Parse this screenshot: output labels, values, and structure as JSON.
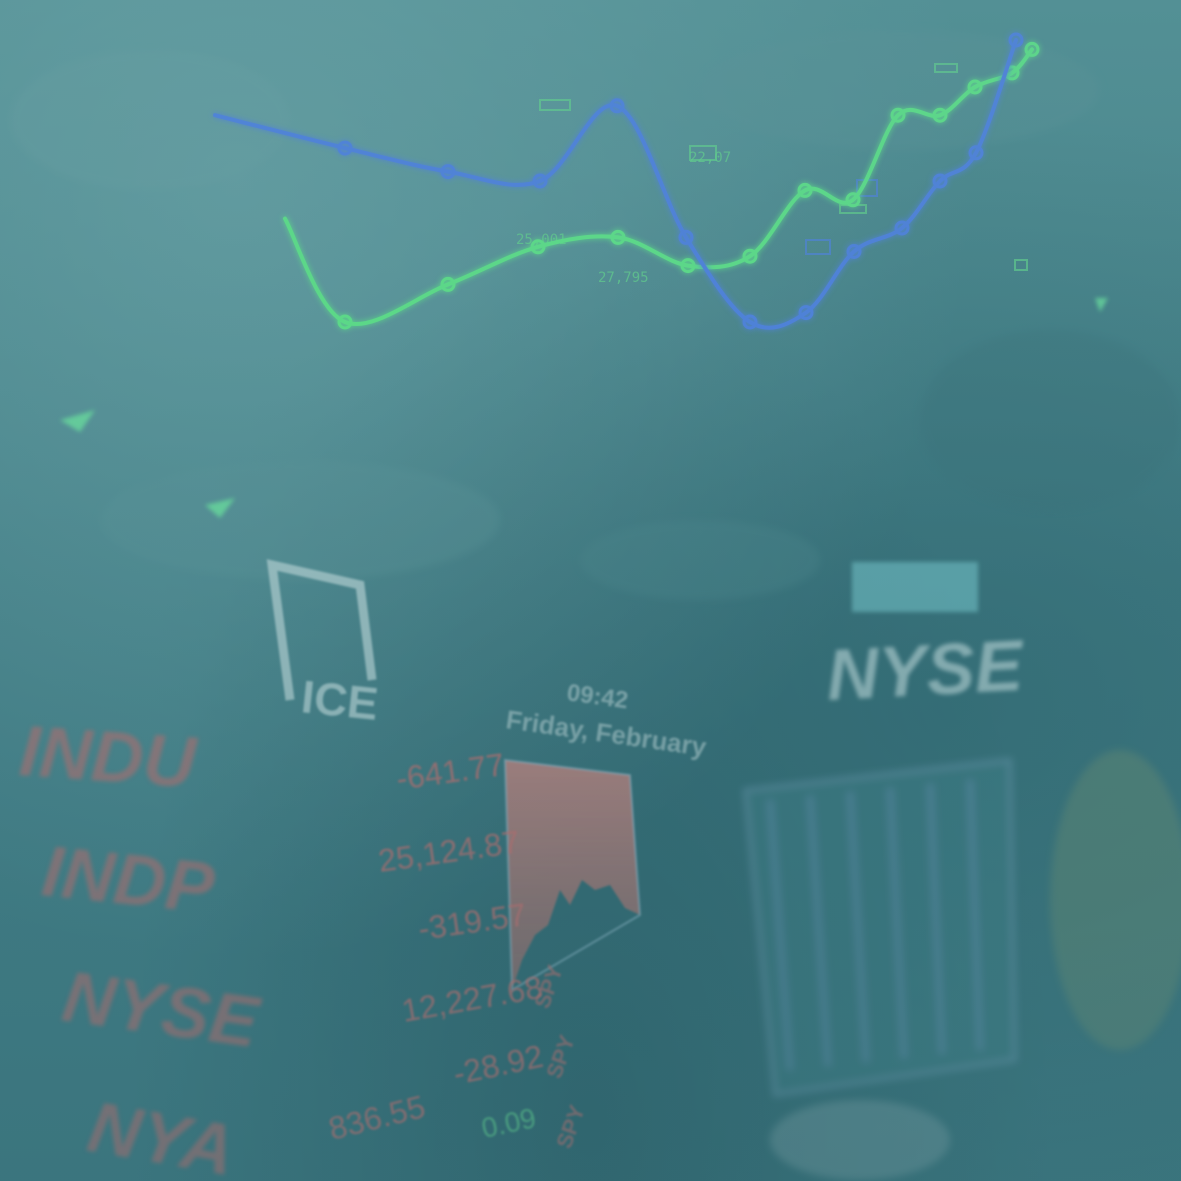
{
  "colors": {
    "background": "#427f87",
    "line_green": "#5dea86",
    "line_blue": "#4d7fe8",
    "ticker_red": "#c86a6a",
    "ticker_green": "#5fd08a",
    "logo_white": "#b9d4d6"
  },
  "logos": {
    "ice": "ICE",
    "nyse": "NYSE"
  },
  "board": {
    "time": "09:42",
    "date": "Friday, February"
  },
  "tickers": [
    {
      "symbol": "INDU",
      "value": "-641.77"
    },
    {
      "symbol": "INDP",
      "value": "25,124.87"
    },
    {
      "symbol": "NYSE",
      "value": "-319.57"
    },
    {
      "symbol": "",
      "value": "12,227.68"
    },
    {
      "symbol": "NYA",
      "value": "-28.92"
    },
    {
      "symbol": "",
      "value": "836.55"
    },
    {
      "symbol": "",
      "value": "0.09"
    }
  ],
  "spy": [
    "SPY",
    "SPY",
    "SPY"
  ],
  "chart_labels": [
    "25,001",
    "27,795",
    "22,07"
  ],
  "chart_data": {
    "type": "line",
    "series": [
      {
        "values": [
          0.62,
          0.4,
          0.48,
          0.56,
          0.58,
          0.52,
          0.54,
          0.68,
          0.66,
          0.84,
          0.84,
          0.9,
          0.93,
          0.98
        ]
      },
      {
        "values": [
          0.84,
          0.77,
          0.72,
          0.7,
          0.86,
          0.58,
          0.4,
          0.42,
          0.55,
          0.6,
          0.7,
          0.76,
          1.0
        ]
      }
    ]
  }
}
